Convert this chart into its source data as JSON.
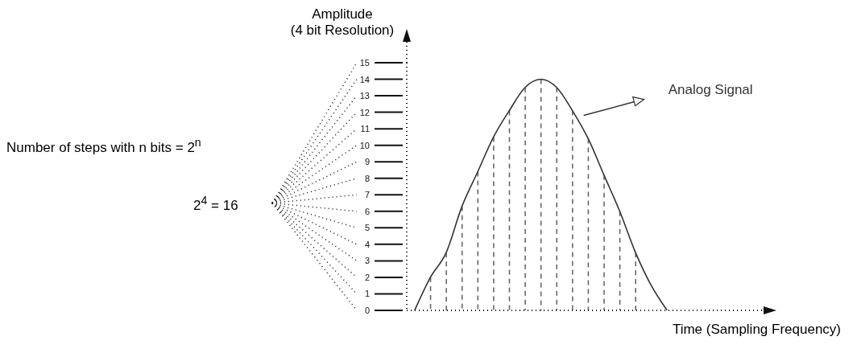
{
  "chart_data": {
    "type": "line",
    "ylabel": "Amplitude\n(4 bit Resolution)",
    "xlabel": "Time (Sampling Frequency)",
    "annotations": [
      "Number of steps with n bits = 2$^{n}$",
      "2$^{4}$ = 16"
    ],
    "categories": [
      null,
      null,
      null,
      null,
      null,
      null,
      null,
      null,
      null,
      null,
      null,
      null,
      null,
      null,
      null,
      null,
      null
    ],
    "series": [
      {
        "name": "Analog Signal",
        "color": "#333333",
        "values": [
          0,
          2,
          3.5,
          6.3,
          8.4,
          10.5,
          12.1,
          13.5,
          14,
          13.5,
          12.1,
          10.4,
          8.2,
          6,
          3.5,
          1.5,
          0
        ]
      },
      {
        "type": "bar",
        "line_style": "dashed",
        "color": "#666666",
        "values": [
          null,
          2,
          3.5,
          6.3,
          8.4,
          10.5,
          12.1,
          13.5,
          14,
          13.5,
          12.1,
          10.4,
          8.2,
          6,
          3.5,
          null,
          null
        ]
      }
    ],
    "marker": "none",
    "ylim": [
      0,
      15
    ],
    "yticks": [
      0,
      1,
      2,
      3,
      4,
      5,
      6,
      7,
      8,
      9,
      10,
      11,
      12,
      13,
      14,
      15
    ],
    "grid": false
  }
}
